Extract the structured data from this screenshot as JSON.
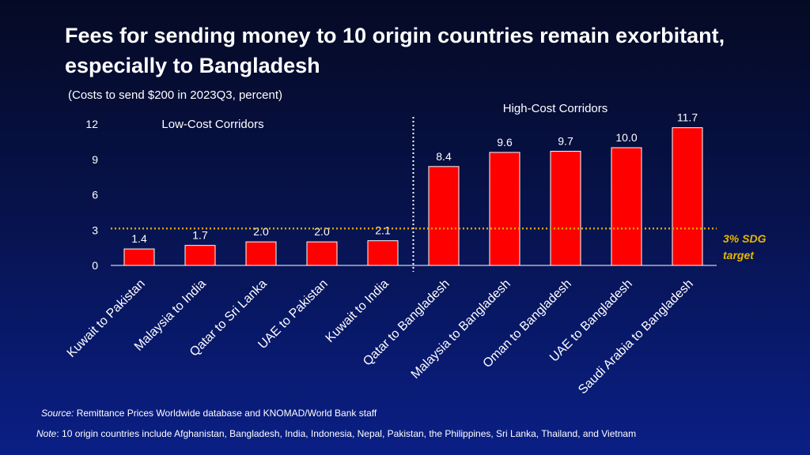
{
  "title": "Fees for sending money to 10 origin countries remain exorbitant, especially to Bangladesh",
  "subtitle": "(Costs to send $200 in 2023Q3, percent)",
  "source_label": "Source:",
  "source_text": " Remittance Prices Worldwide database and KNOMAD/World Bank staff",
  "note_label": "Note",
  "note_text": ": 10 origin countries include Afghanistan, Bangladesh, India, Indonesia, Nepal, Pakistan, the Philippines, Sri Lanka, Thailand, and Vietnam",
  "colors": {
    "bar": "#ff0000",
    "target_line": "#d4a800",
    "target_text": "#e6b800",
    "divider": "#ffffff"
  },
  "chart_data": {
    "type": "bar",
    "categories": [
      "Kuwait to Pakistan",
      "Malaysia to India",
      "Qatar to Sri Lanka",
      "UAE to Pakistan",
      "Kuwait to India",
      "Qatar to Bangladesh",
      "Malaysia to Bangladesh",
      "Oman to Bangladesh",
      "UAE to Bangladesh",
      "Saudi Arabia to Bangladesh"
    ],
    "values": [
      1.4,
      1.7,
      2.0,
      2.0,
      2.1,
      8.4,
      9.6,
      9.7,
      10.0,
      11.7
    ],
    "value_labels": [
      "1.4",
      "1.7",
      "2.0",
      "2.0",
      "2.1",
      "8.4",
      "9.6",
      "9.7",
      "10.0",
      "11.7"
    ],
    "yticks": [
      "0",
      "3",
      "6",
      "9",
      "12"
    ],
    "ylim": [
      0,
      12
    ],
    "grid": false,
    "groups": [
      {
        "label": "Low-Cost Corridors",
        "range": [
          0,
          4
        ]
      },
      {
        "label": "High-Cost Corridors",
        "range": [
          5,
          9
        ]
      }
    ],
    "target": {
      "value": 3,
      "label_line1": "3% SDG",
      "label_line2": "target"
    }
  }
}
